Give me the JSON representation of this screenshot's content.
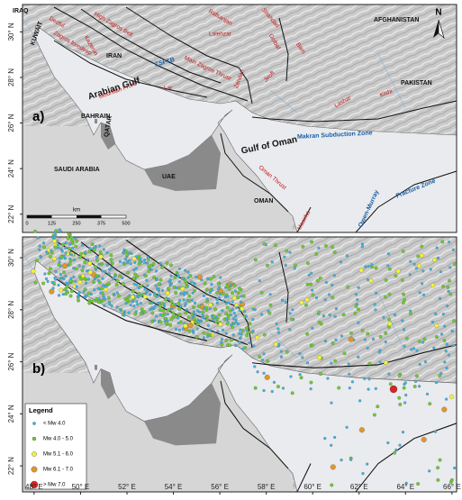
{
  "panels": [
    {
      "label": "a)",
      "ylim": [
        21.2,
        31.2
      ],
      "yticks": [
        {
          "value": 22,
          "label": "22° N"
        },
        {
          "value": 24,
          "label": "24° N"
        },
        {
          "value": 26,
          "label": "26° N"
        },
        {
          "value": 28,
          "label": "28° N"
        },
        {
          "value": 30,
          "label": "30° N"
        }
      ],
      "place_labels": [
        "IRAQ",
        "KUWAIT",
        "IRAN",
        "AFGHANISTAN",
        "PAKISTAN",
        "BAHRAIN",
        "QATAR",
        "SAUDI ARABIA",
        "UAE",
        "OMAN",
        "Arabian Gulf",
        "Gulf of Oman",
        "Makran Subduction Zone",
        "Owen-Murray",
        "Fracture Zone",
        "Masirha",
        "Oman Thrust",
        "Dezful",
        "High Zagros Belt",
        "Zagros foredeep",
        "Kazerun",
        "Rafsanjan",
        "Shahdad",
        "Golbaf",
        "Bam",
        "Lalehzar",
        "Main Zagros Thrust",
        "Zendan",
        "Jiroft",
        "Lashar",
        "Kishi",
        "Mountain Front",
        "Lar",
        "ZSFTB"
      ],
      "north": "N",
      "scale_bar": {
        "unit": "km",
        "labels": [
          "0",
          "125",
          "250",
          "375",
          "500"
        ]
      }
    },
    {
      "label": "b)",
      "xlim": [
        47.5,
        66.2
      ],
      "ylim": [
        21.0,
        30.8
      ],
      "xticks": [
        {
          "value": 48,
          "label": "48° E"
        },
        {
          "value": 50,
          "label": "50° E"
        },
        {
          "value": 52,
          "label": "52° E"
        },
        {
          "value": 54,
          "label": "54° E"
        },
        {
          "value": 56,
          "label": "56° E"
        },
        {
          "value": 58,
          "label": "58° E"
        },
        {
          "value": 60,
          "label": "60° E"
        },
        {
          "value": 62,
          "label": "62° E"
        },
        {
          "value": 64,
          "label": "64° E"
        },
        {
          "value": 66,
          "label": "66° E"
        }
      ],
      "yticks": [
        {
          "value": 22,
          "label": "22° N"
        },
        {
          "value": 24,
          "label": "24° N"
        },
        {
          "value": 26,
          "label": "26° N"
        },
        {
          "value": 28,
          "label": "28° N"
        },
        {
          "value": 30,
          "label": "30° N"
        }
      ],
      "legend": {
        "title": "Legend",
        "items": [
          {
            "label": "< Mw 4.0",
            "color": "#38b6e8"
          },
          {
            "label": "Mw 4.0 - 5.0",
            "color": "#6ccc2e"
          },
          {
            "label": "Mw 5.1 - 6.0",
            "color": "#f4f23a"
          },
          {
            "label": "Mw 6.1 - 7.0",
            "color": "#e0962c"
          },
          {
            "label": "> Mw 7.0",
            "color": "#dd2020"
          }
        ]
      }
    }
  ]
}
